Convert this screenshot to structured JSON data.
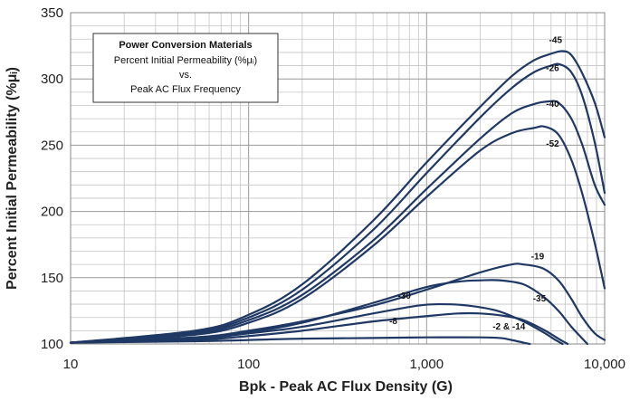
{
  "chart_data": {
    "type": "line",
    "x_scale": "log",
    "xlim": [
      10,
      10000
    ],
    "ylim": [
      100,
      350
    ],
    "xlabel": "Bpk - Peak AC Flux Density (G)",
    "ylabel": "Percent Initial Permeability (%μᵢ)",
    "x_ticks": [
      "10",
      "100",
      "1,000",
      "10,000"
    ],
    "y_ticks": [
      "100",
      "150",
      "200",
      "250",
      "300",
      "350"
    ],
    "grid": true,
    "legend_box": {
      "title": "Power Conversion Materials",
      "line1": "Percent Initial Permeability (%μᵢ)",
      "line2": "vs.",
      "line3": "Peak AC Flux Frequency"
    },
    "line_color": "#1f3864",
    "series": [
      {
        "name": "-45",
        "points": [
          [
            10,
            101
          ],
          [
            50,
            110
          ],
          [
            100,
            122
          ],
          [
            200,
            145
          ],
          [
            500,
            193
          ],
          [
            1000,
            237
          ],
          [
            2000,
            279
          ],
          [
            3000,
            302
          ],
          [
            4000,
            314
          ],
          [
            5000,
            319
          ],
          [
            5800,
            321
          ],
          [
            6500,
            318
          ],
          [
            7500,
            304
          ],
          [
            8800,
            282
          ],
          [
            10000,
            256
          ]
        ]
      },
      {
        "name": "-26",
        "points": [
          [
            10,
            101
          ],
          [
            50,
            109
          ],
          [
            100,
            120
          ],
          [
            200,
            141
          ],
          [
            500,
            186
          ],
          [
            1000,
            229
          ],
          [
            2000,
            271
          ],
          [
            3000,
            293
          ],
          [
            4000,
            305
          ],
          [
            5000,
            310
          ],
          [
            5600,
            311
          ],
          [
            6500,
            305
          ],
          [
            7500,
            287
          ],
          [
            8800,
            252
          ],
          [
            10000,
            214
          ]
        ]
      },
      {
        "name": "-40",
        "points": [
          [
            10,
            101
          ],
          [
            50,
            108
          ],
          [
            100,
            118
          ],
          [
            200,
            137
          ],
          [
            500,
            178
          ],
          [
            1000,
            217
          ],
          [
            2000,
            255
          ],
          [
            3000,
            274
          ],
          [
            4000,
            281
          ],
          [
            4800,
            283
          ],
          [
            5500,
            282
          ],
          [
            6500,
            270
          ],
          [
            7500,
            250
          ],
          [
            8800,
            220
          ],
          [
            10000,
            205
          ]
        ]
      },
      {
        "name": "-52",
        "points": [
          [
            10,
            101
          ],
          [
            50,
            107
          ],
          [
            100,
            116
          ],
          [
            200,
            134
          ],
          [
            500,
            174
          ],
          [
            1000,
            211
          ],
          [
            2000,
            246
          ],
          [
            3000,
            259
          ],
          [
            4000,
            263
          ],
          [
            4600,
            264
          ],
          [
            5500,
            258
          ],
          [
            6500,
            239
          ],
          [
            7500,
            213
          ],
          [
            8800,
            176
          ],
          [
            10000,
            142
          ]
        ]
      },
      {
        "name": "-19",
        "points": [
          [
            10,
            101
          ],
          [
            50,
            105
          ],
          [
            100,
            110
          ],
          [
            200,
            117
          ],
          [
            500,
            129
          ],
          [
            1000,
            141
          ],
          [
            2000,
            154
          ],
          [
            3000,
            160
          ],
          [
            3500,
            160
          ],
          [
            4500,
            157
          ],
          [
            5500,
            148
          ],
          [
            6500,
            134
          ],
          [
            7500,
            120
          ],
          [
            8800,
            108
          ],
          [
            10000,
            103
          ]
        ]
      },
      {
        "name": "-35",
        "points": [
          [
            10,
            101
          ],
          [
            50,
            105
          ],
          [
            100,
            109
          ],
          [
            200,
            116
          ],
          [
            500,
            131
          ],
          [
            1000,
            143
          ],
          [
            1500,
            147
          ],
          [
            2000,
            148
          ],
          [
            2600,
            148
          ],
          [
            3500,
            145
          ],
          [
            4500,
            136
          ],
          [
            5500,
            125
          ],
          [
            6500,
            113
          ],
          [
            7500,
            104
          ],
          [
            8000,
            100
          ]
        ]
      },
      {
        "name": "-30",
        "points": [
          [
            10,
            101
          ],
          [
            50,
            104
          ],
          [
            100,
            108
          ],
          [
            200,
            113
          ],
          [
            500,
            123
          ],
          [
            900,
            129
          ],
          [
            1200,
            130
          ],
          [
            1700,
            129
          ],
          [
            2500,
            125
          ],
          [
            3500,
            117
          ],
          [
            4500,
            109
          ],
          [
            5300,
            103
          ],
          [
            5800,
            100
          ]
        ]
      },
      {
        "name": "-8",
        "points": [
          [
            10,
            101
          ],
          [
            50,
            103
          ],
          [
            100,
            106
          ],
          [
            200,
            110
          ],
          [
            500,
            117
          ],
          [
            1000,
            121
          ],
          [
            1500,
            123
          ],
          [
            2000,
            123
          ],
          [
            2800,
            121
          ],
          [
            3500,
            118
          ],
          [
            4500,
            111
          ],
          [
            5500,
            104
          ],
          [
            6200,
            100
          ]
        ]
      },
      {
        "name": "-2 & -14",
        "points": [
          [
            10,
            101
          ],
          [
            50,
            102
          ],
          [
            100,
            103
          ],
          [
            200,
            104
          ],
          [
            500,
            104.5
          ],
          [
            1000,
            105
          ],
          [
            2000,
            105
          ],
          [
            2600,
            104.5
          ],
          [
            3000,
            103
          ],
          [
            3500,
            101
          ],
          [
            3800,
            100
          ]
        ]
      }
    ],
    "curve_labels": [
      {
        "text": "-45",
        "x": 5300,
        "y": 327
      },
      {
        "text": "-26",
        "x": 5100,
        "y": 306
      },
      {
        "text": "-40",
        "x": 5100,
        "y": 279
      },
      {
        "text": "-52",
        "x": 5100,
        "y": 249
      },
      {
        "text": "-19",
        "x": 4200,
        "y": 164
      },
      {
        "text": "-35",
        "x": 4300,
        "y": 132
      },
      {
        "text": "-30",
        "x": 750,
        "y": 134
      },
      {
        "text": "-8",
        "x": 650,
        "y": 115
      },
      {
        "text": "-2 & -14",
        "x": 2900,
        "y": 111
      }
    ]
  }
}
